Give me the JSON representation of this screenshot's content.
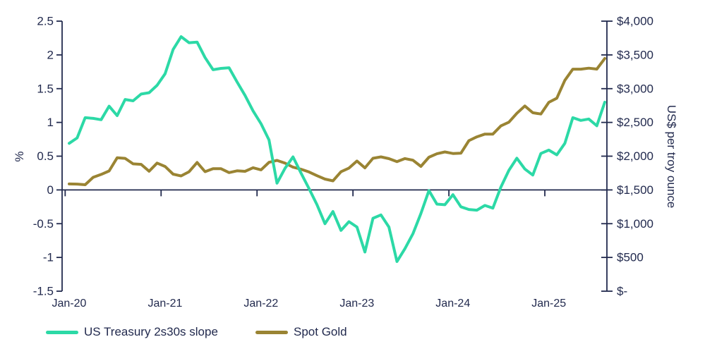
{
  "colors": {
    "background": "#FFFFFF",
    "text": "#222A4E",
    "axis": "#222A4E",
    "treasury_line": "#2CD9A6",
    "gold_line": "#9A8433"
  },
  "chart_data": {
    "type": "line",
    "title": "",
    "grid": false,
    "legend_position": "bottom",
    "categories": [
      "Jan-20",
      "Feb-20",
      "Mar-20",
      "Apr-20",
      "May-20",
      "Jun-20",
      "Jul-20",
      "Aug-20",
      "Sep-20",
      "Oct-20",
      "Nov-20",
      "Dec-20",
      "Jan-21",
      "Feb-21",
      "Mar-21",
      "Apr-21",
      "May-21",
      "Jun-21",
      "Jul-21",
      "Aug-21",
      "Sep-21",
      "Oct-21",
      "Nov-21",
      "Dec-21",
      "Jan-22",
      "Feb-22",
      "Mar-22",
      "Apr-22",
      "May-22",
      "Jun-22",
      "Jul-22",
      "Aug-22",
      "Sep-22",
      "Oct-22",
      "Nov-22",
      "Dec-22",
      "Jan-23",
      "Feb-23",
      "Mar-23",
      "Apr-23",
      "May-23",
      "Jun-23",
      "Jul-23",
      "Aug-23",
      "Sep-23",
      "Oct-23",
      "Nov-23",
      "Dec-23",
      "Jan-24",
      "Feb-24",
      "Mar-24",
      "Apr-24",
      "May-24",
      "Jun-24",
      "Jul-24",
      "Aug-24",
      "Sep-24",
      "Oct-24",
      "Nov-24",
      "Dec-24",
      "Jan-25",
      "Feb-25",
      "Mar-25",
      "Apr-25",
      "May-25",
      "Jun-25",
      "Jul-25",
      "Aug-25"
    ],
    "series": [
      {
        "name": "US Treasury 2s30s slope",
        "axis": "left",
        "unit": "%",
        "color": "#2CD9A6",
        "values": [
          0.69,
          0.77,
          1.07,
          1.06,
          1.04,
          1.24,
          1.1,
          1.34,
          1.32,
          1.42,
          1.44,
          1.55,
          1.72,
          2.08,
          2.27,
          2.18,
          2.19,
          1.96,
          1.78,
          1.8,
          1.81,
          1.6,
          1.4,
          1.17,
          0.98,
          0.74,
          0.1,
          0.32,
          0.49,
          0.25,
          0.02,
          -0.22,
          -0.5,
          -0.32,
          -0.6,
          -0.47,
          -0.55,
          -0.92,
          -0.42,
          -0.37,
          -0.55,
          -1.06,
          -0.87,
          -0.65,
          -0.35,
          -0.01,
          -0.21,
          -0.22,
          -0.07,
          -0.25,
          -0.29,
          -0.3,
          -0.23,
          -0.27,
          0.04,
          0.29,
          0.47,
          0.31,
          0.22,
          0.54,
          0.59,
          0.52,
          0.69,
          1.07,
          1.03,
          1.05,
          0.95,
          1.3
        ]
      },
      {
        "name": "Spot Gold",
        "axis": "right",
        "unit": "US$ per troy ounce",
        "color": "#9A8433",
        "values": [
          1589,
          1586,
          1577,
          1687,
          1730,
          1781,
          1976,
          1968,
          1886,
          1879,
          1777,
          1898,
          1848,
          1734,
          1708,
          1769,
          1907,
          1770,
          1814,
          1814,
          1757,
          1783,
          1775,
          1829,
          1797,
          1909,
          1937,
          1897,
          1837,
          1807,
          1766,
          1711,
          1661,
          1634,
          1769,
          1824,
          1928,
          1827,
          1969,
          1990,
          1963,
          1919,
          1965,
          1940,
          1849,
          1984,
          2036,
          2063,
          2040,
          2044,
          2230,
          2286,
          2327,
          2327,
          2448,
          2503,
          2635,
          2744,
          2643,
          2625,
          2798,
          2858,
          3124,
          3289,
          3289,
          3303,
          3290,
          3448
        ]
      }
    ],
    "left_axis": {
      "title": "%",
      "min": -1.5,
      "max": 2.5,
      "tick_labels": [
        "2.5",
        "2",
        "1.5",
        "1",
        "0.5",
        "0",
        "-0.5",
        "-1",
        "-1.5"
      ]
    },
    "right_axis": {
      "title": "US$ per troy ounce",
      "min": 0,
      "max": 4000,
      "tick_labels": [
        "$4,000",
        "$3,500",
        "$3,000",
        "$2,500",
        "$2,000",
        "$1,500",
        "$1,000",
        "$500",
        "$-"
      ]
    },
    "x_axis": {
      "tick_labels": [
        "Jan-20",
        "Jan-21",
        "Jan-22",
        "Jan-23",
        "Jan-24",
        "Jan-25"
      ],
      "label_interval_months": 12
    }
  }
}
